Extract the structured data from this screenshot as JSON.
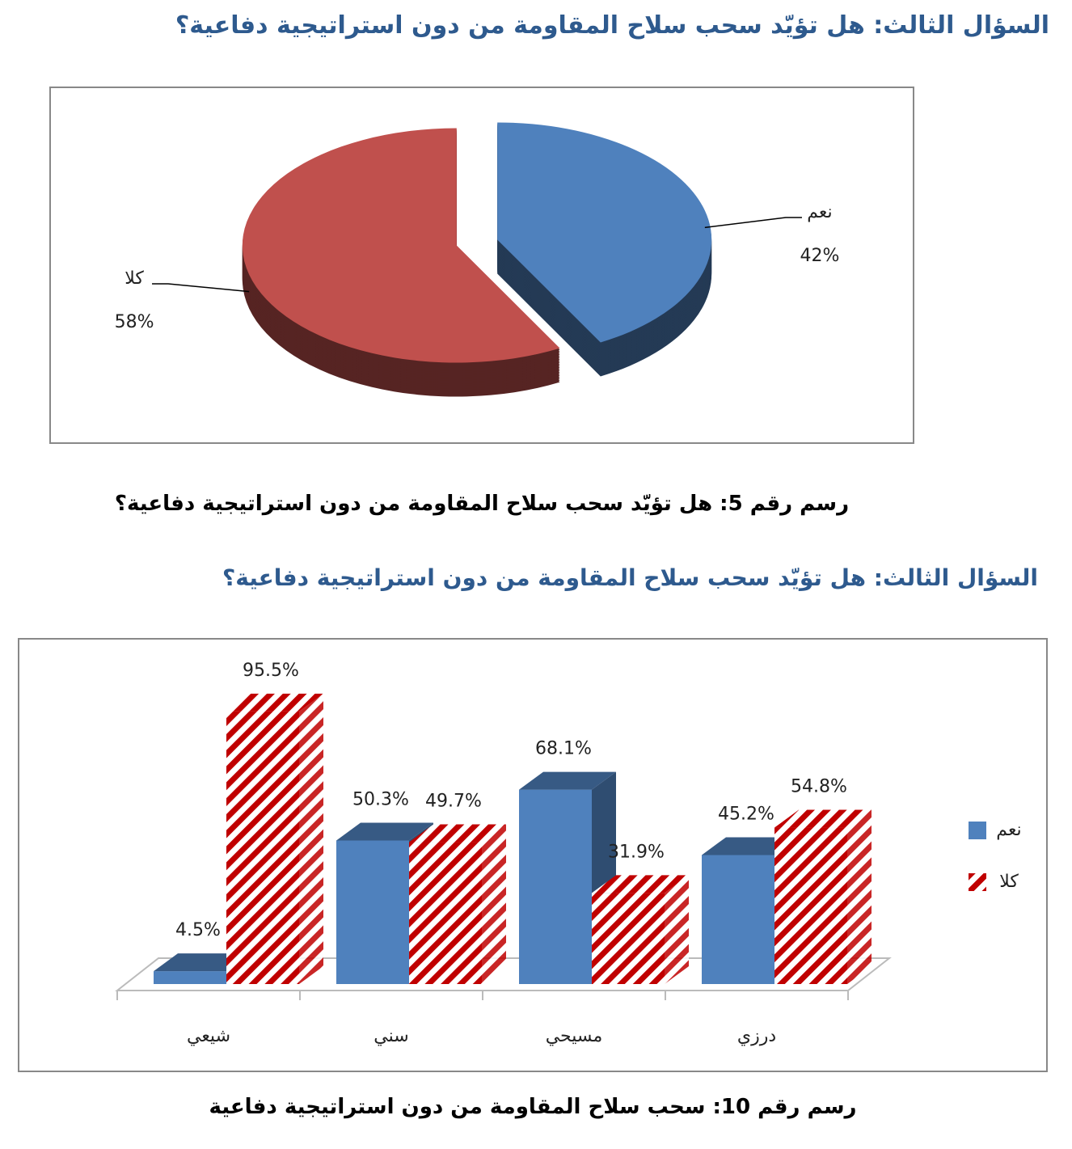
{
  "heading_1": "السؤال الثالث: هل تؤيّد سحب سلاح المقاومة من دون استراتيجية دفاعية؟",
  "caption_1": "رسم رقم 5: هل تؤيّد سحب سلاح المقاومة من دون استراتيجية دفاعية؟",
  "heading_2": "السؤال الثالث: هل تؤيّد سحب سلاح المقاومة من دون استراتيجية دفاعية؟",
  "caption_2": "رسم رقم 10: سحب سلاح المقاومة من دون استراتيجية دفاعية",
  "chart_data": [
    {
      "type": "pie",
      "categories": [
        "نعم",
        "كلا"
      ],
      "values": [
        42,
        58
      ],
      "value_labels": [
        "42%",
        "58%"
      ],
      "colors": [
        "#4f81bd",
        "#c0504d"
      ]
    },
    {
      "type": "bar",
      "categories": [
        "شيعي",
        "سني",
        "مسيحي",
        "درزي"
      ],
      "series": [
        {
          "name": "نعم",
          "color": "#4f81bd",
          "values": [
            4.5,
            50.3,
            68.1,
            45.2
          ],
          "value_labels": [
            "4.5%",
            "50.3%",
            "68.1%",
            "45.2%"
          ]
        },
        {
          "name": "كلا",
          "color": "#c00000",
          "values": [
            95.5,
            49.7,
            31.9,
            54.8
          ],
          "value_labels": [
            "95.5%",
            "49.7%",
            "31.9%",
            "54.8%"
          ]
        }
      ],
      "legend": "right"
    }
  ]
}
